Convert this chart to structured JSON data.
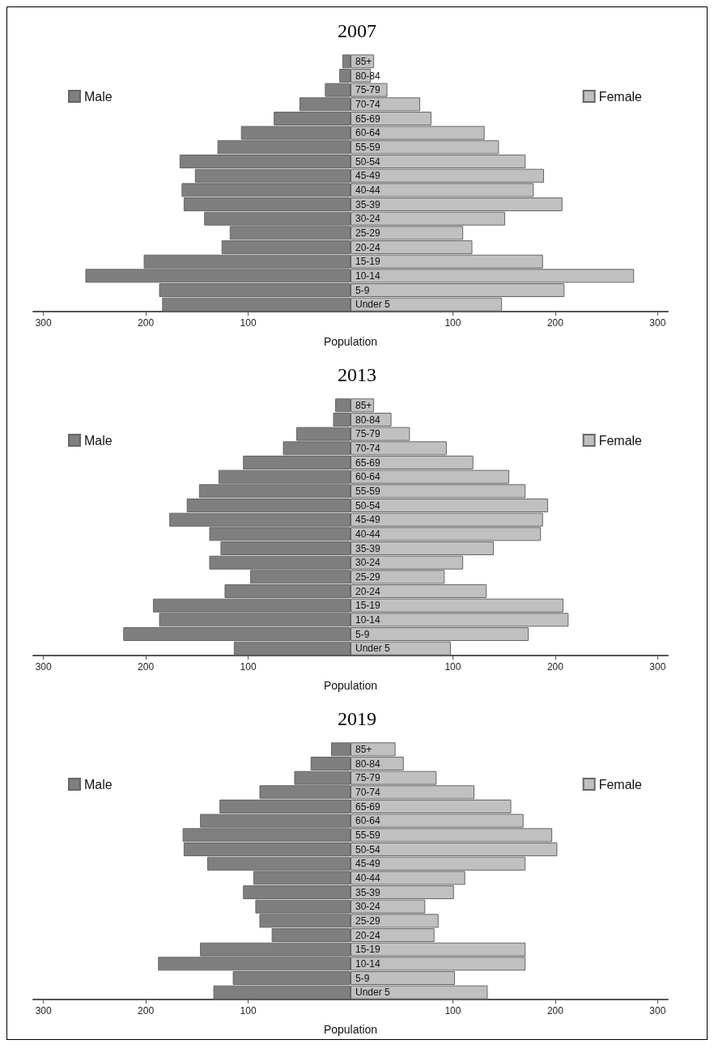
{
  "chart_data": [
    {
      "type": "bar",
      "orientation": "horizontal",
      "stacked": true,
      "title": "2007",
      "xlabel": "Population",
      "grid": false,
      "legend": "top",
      "categories": [
        "85+",
        "80-84",
        "75-79",
        "70-74",
        "65-69",
        "60-64",
        "55-59",
        "50-54",
        "45-49",
        "40-44",
        "35-39",
        "30-24",
        "25-29",
        "20-24",
        "15-19",
        "10-14",
        "5-9",
        "Under 5"
      ],
      "series": [
        {
          "name": "Male",
          "color": "#7f7f7f",
          "values": [
            -8,
            -11,
            -25,
            -50,
            -75,
            -107,
            -130,
            -167,
            -152,
            -165,
            -163,
            -143,
            -118,
            -126,
            -202,
            -259,
            -187,
            -184
          ]
        },
        {
          "name": "Female",
          "color": "#c0c0c0",
          "values": [
            23,
            20,
            36,
            68,
            79,
            131,
            145,
            171,
            189,
            179,
            207,
            151,
            110,
            119,
            188,
            277,
            209,
            148
          ]
        }
      ],
      "xlim": [
        -310,
        310
      ],
      "xticks": [
        {
          "value": -300,
          "label": "300"
        },
        {
          "value": -200,
          "label": "200"
        },
        {
          "value": -100,
          "label": "100"
        },
        100,
        200,
        300
      ]
    },
    {
      "type": "bar",
      "orientation": "horizontal",
      "stacked": true,
      "title": "2013",
      "xlabel": "Population",
      "grid": false,
      "legend": "top",
      "categories": [
        "85+",
        "80-84",
        "75-79",
        "70-74",
        "65-69",
        "60-64",
        "55-59",
        "50-54",
        "45-49",
        "40-44",
        "35-39",
        "30-24",
        "25-29",
        "20-24",
        "15-19",
        "10-14",
        "5-9",
        "Under 5"
      ],
      "series": [
        {
          "name": "Male",
          "color": "#7f7f7f",
          "values": [
            -15,
            -17,
            -53,
            -66,
            -105,
            -129,
            -148,
            -160,
            -177,
            -138,
            -127,
            -138,
            -98,
            -123,
            -193,
            -187,
            -222,
            -114
          ]
        },
        {
          "name": "Female",
          "color": "#c0c0c0",
          "values": [
            23,
            40,
            58,
            94,
            120,
            155,
            171,
            193,
            188,
            186,
            140,
            110,
            92,
            133,
            208,
            213,
            174,
            98
          ]
        }
      ],
      "xlim": [
        -310,
        310
      ],
      "xticks": [
        {
          "value": -300,
          "label": "300"
        },
        {
          "value": -200,
          "label": "200"
        },
        {
          "value": -100,
          "label": "100"
        },
        100,
        200,
        300
      ]
    },
    {
      "type": "bar",
      "orientation": "horizontal",
      "stacked": true,
      "title": "2019",
      "xlabel": "Population",
      "grid": false,
      "legend": "top",
      "categories": [
        "85+",
        "80-84",
        "75-79",
        "70-74",
        "65-69",
        "60-64",
        "55-59",
        "50-54",
        "45-49",
        "40-44",
        "35-39",
        "30-24",
        "25-29",
        "20-24",
        "15-19",
        "10-14",
        "5-9",
        "Under 5"
      ],
      "series": [
        {
          "name": "Male",
          "color": "#7f7f7f",
          "values": [
            -19,
            -39,
            -55,
            -89,
            -128,
            -147,
            -164,
            -163,
            -140,
            -95,
            -105,
            -93,
            -89,
            -77,
            -147,
            -188,
            -115,
            -134
          ]
        },
        {
          "name": "Female",
          "color": "#c0c0c0",
          "values": [
            44,
            52,
            84,
            121,
            157,
            169,
            197,
            202,
            171,
            112,
            101,
            73,
            86,
            82,
            171,
            171,
            102,
            134
          ]
        }
      ],
      "xlim": [
        -310,
        310
      ],
      "xticks": [
        {
          "value": -300,
          "label": "300"
        },
        {
          "value": -200,
          "label": "200"
        },
        {
          "value": -100,
          "label": "100"
        },
        100,
        200,
        300
      ]
    }
  ]
}
